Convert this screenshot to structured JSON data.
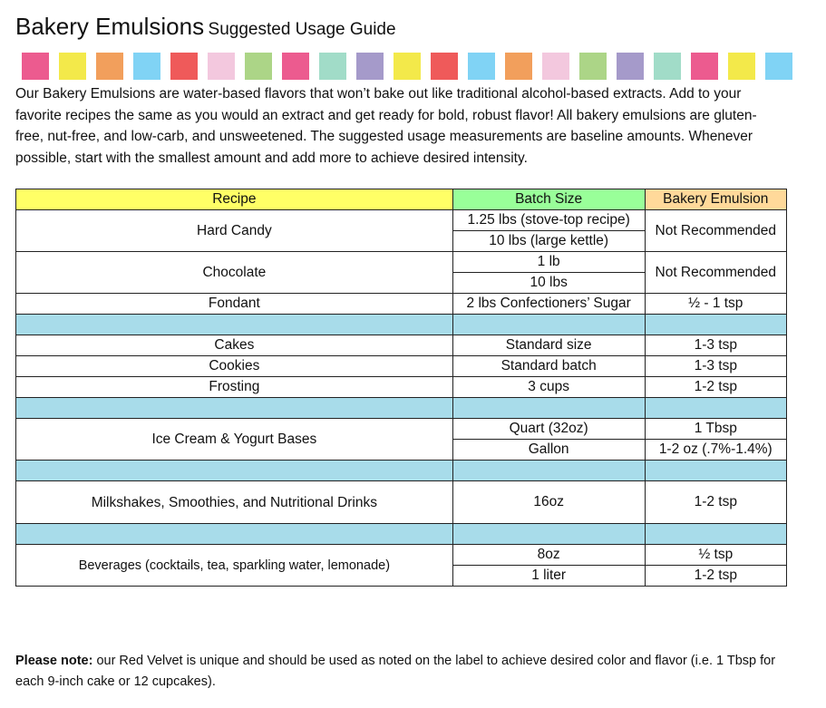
{
  "title": {
    "main": "Bakery Emulsions",
    "sub": "Suggested Usage Guide"
  },
  "swatch_colors": [
    "#ec5b8f",
    "#f3e94a",
    "#f29f5c",
    "#80d3f5",
    "#ef5a5a",
    "#f3c8de",
    "#acd587",
    "#ec5b8f",
    "#a1dcc8",
    "#a59aca",
    "#f3e94a",
    "#ef5a5a",
    "#80d3f5",
    "#f29f5c",
    "#f3c8de",
    "#acd587",
    "#a59aca",
    "#a1dcc8",
    "#ec5b8f",
    "#f3e94a",
    "#80d3f5"
  ],
  "intro": "Our Bakery Emulsions are water-based flavors that won’t bake out like traditional alcohol-based extracts. Add to your favorite recipes the same as you would an extract and get ready for bold, robust flavor! All bakery emulsions are gluten-free, nut-free, and low-carb, and unsweetened. The suggested usage measurements are baseline amounts. Whenever possible, start with the smallest amount and add more to achieve desired intensity.",
  "table": {
    "headers": [
      "Recipe",
      "Batch Size",
      "Bakery Emulsion"
    ],
    "header_colors": [
      "#ffff66",
      "#99ff99",
      "#ffd99a"
    ],
    "separator_color": "#a8dcea",
    "rows": {
      "hard_candy": {
        "recipe": "Hard Candy",
        "batch": [
          "1.25 lbs (stove-top recipe)",
          "10 lbs (large kettle)"
        ],
        "emulsion": "Not Recommended"
      },
      "chocolate": {
        "recipe": "Chocolate",
        "batch": [
          "1 lb",
          "10 lbs"
        ],
        "emulsion": "Not Recommended"
      },
      "fondant": {
        "recipe": "Fondant",
        "batch": "2 lbs Confectioners’ Sugar",
        "emulsion": "½ - 1 tsp"
      },
      "cakes": {
        "recipe": "Cakes",
        "batch": "Standard size",
        "emulsion": "1-3 tsp"
      },
      "cookies": {
        "recipe": "Cookies",
        "batch": "Standard batch",
        "emulsion": "1-3 tsp"
      },
      "frosting": {
        "recipe": "Frosting",
        "batch": "3 cups",
        "emulsion": "1-2 tsp"
      },
      "ice_cream": {
        "recipe": "Ice Cream & Yogurt Bases",
        "batch": [
          "Quart (32oz)",
          "Gallon"
        ],
        "emulsion": [
          "1 Tbsp",
          "1-2 oz (.7%-1.4%)"
        ]
      },
      "milkshakes": {
        "recipe": "Milkshakes, Smoothies, and Nutritional Drinks",
        "batch": "16oz",
        "emulsion": "1-2 tsp"
      },
      "beverages": {
        "recipe": "Beverages (cocktails, tea, sparkling water, lemonade)",
        "batch": [
          "8oz",
          "1 liter"
        ],
        "emulsion": [
          "½ tsp",
          "1-2 tsp"
        ]
      }
    }
  },
  "note": {
    "label": "Please note:",
    "text": " our Red Velvet is unique and should be used as noted on the label to achieve desired color and flavor (i.e. 1 Tbsp for each 9-inch cake or 12 cupcakes)."
  }
}
